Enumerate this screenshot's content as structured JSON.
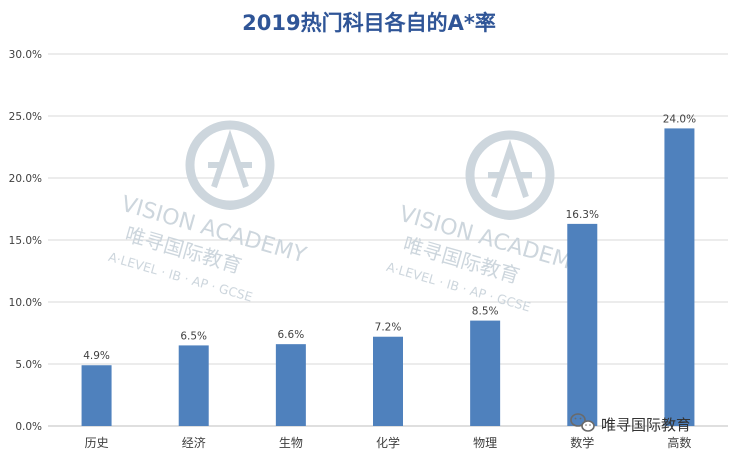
{
  "chart_data": {
    "type": "bar",
    "title": "2019热门科目各自的A*率",
    "xlabel": "",
    "ylabel": "",
    "categories": [
      "历史",
      "经济",
      "生物",
      "化学",
      "物理",
      "数学",
      "高数"
    ],
    "values": [
      4.9,
      6.5,
      6.6,
      7.2,
      8.5,
      16.3,
      24.0
    ],
    "value_labels": [
      "4.9%",
      "6.5%",
      "6.6%",
      "7.2%",
      "8.5%",
      "16.3%",
      "24.0%"
    ],
    "ylim": [
      0,
      30
    ],
    "yticks": [
      0,
      5,
      10,
      15,
      20,
      25,
      30
    ],
    "ytick_labels": [
      "0.0%",
      "5.0%",
      "10.0%",
      "15.0%",
      "20.0%",
      "25.0%",
      "30.0%"
    ],
    "grid": true,
    "legend": "none",
    "bar_color": "#4F81BD",
    "title_color": "#2F5597"
  },
  "watermark": {
    "brand": "VISION ACADEMY",
    "chinese": "唯寻国际教育",
    "tagline": "A·LEVEL · IB · AP · GCSE",
    "color": "#cdd6dd"
  },
  "wechat_badge": {
    "label": "唯寻国际教育",
    "icon": "wechat-icon"
  }
}
